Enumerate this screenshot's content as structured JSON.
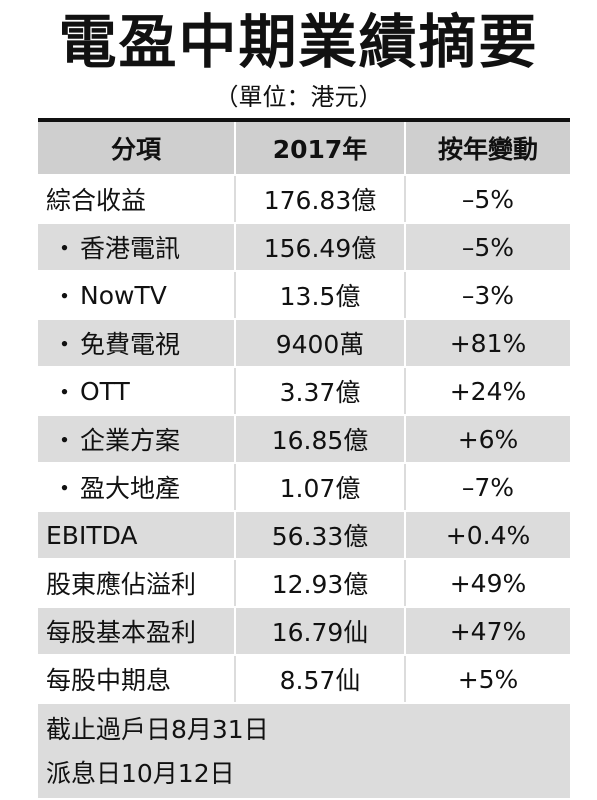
{
  "title": "電盈中期業績摘要",
  "unit": "（單位：港元）",
  "table": {
    "headers": [
      "分項",
      "2017年",
      "按年變動"
    ],
    "rows": [
      {
        "item": "綜合收益",
        "value": "176.83億",
        "change": "–5%",
        "sub": false
      },
      {
        "item": "香港電訊",
        "value": "156.49億",
        "change": "–5%",
        "sub": true
      },
      {
        "item": "NowTV",
        "value": "13.5億",
        "change": "–3%",
        "sub": true
      },
      {
        "item": "免費電視",
        "value": "9400萬",
        "change": "+81%",
        "sub": true
      },
      {
        "item": "OTT",
        "value": "3.37億",
        "change": "+24%",
        "sub": true
      },
      {
        "item": "企業方案",
        "value": "16.85億",
        "change": "+6%",
        "sub": true
      },
      {
        "item": "盈大地產",
        "value": "1.07億",
        "change": "–7%",
        "sub": true
      },
      {
        "item": "EBITDA",
        "value": "56.33億",
        "change": "+0.4%",
        "sub": false
      },
      {
        "item": "股東應佔溢利",
        "value": "12.93億",
        "change": "+49%",
        "sub": false
      },
      {
        "item": "每股基本盈利",
        "value": "16.79仙",
        "change": "+47%",
        "sub": false
      },
      {
        "item": "每股中期息",
        "value": "8.57仙",
        "change": "+5%",
        "sub": false
      }
    ],
    "bullet": "・"
  },
  "footer": {
    "cutoff": "截止過戶日8月31日",
    "payment": "派息日10月12日"
  }
}
